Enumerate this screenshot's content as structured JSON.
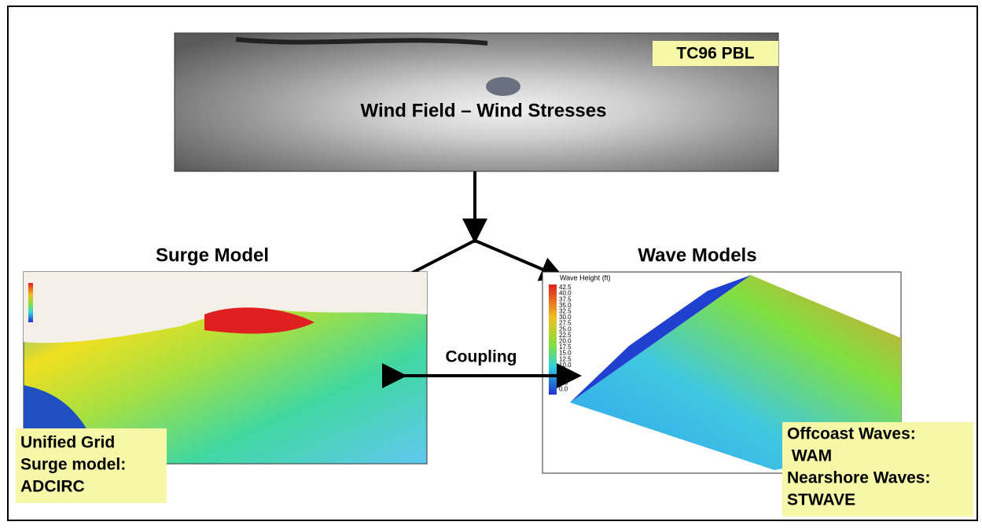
{
  "wind": {
    "label": "TC96 PBL",
    "title": "Wind Field – Wind Stresses"
  },
  "surge": {
    "title": "Surge Model",
    "note_lines": [
      "Unified Grid",
      "Surge model:",
      "ADCIRC"
    ]
  },
  "wave": {
    "title": "Wave Models",
    "legend_title": "Wave Height (ft)",
    "legend_labels": [
      "42.5",
      "40.0",
      "37.5",
      "35.0",
      "32.5",
      "30.0",
      "27.5",
      "25.0",
      "22.5",
      "20.0",
      "17.5",
      "15.0",
      "12.5",
      "10.0",
      "7.5",
      "5.0",
      "2.5",
      "0.0"
    ],
    "note_lines": [
      "Offcoast Waves:",
      " WAM",
      "Nearshore Waves:",
      "STWAVE"
    ]
  },
  "coupling": "Coupling"
}
